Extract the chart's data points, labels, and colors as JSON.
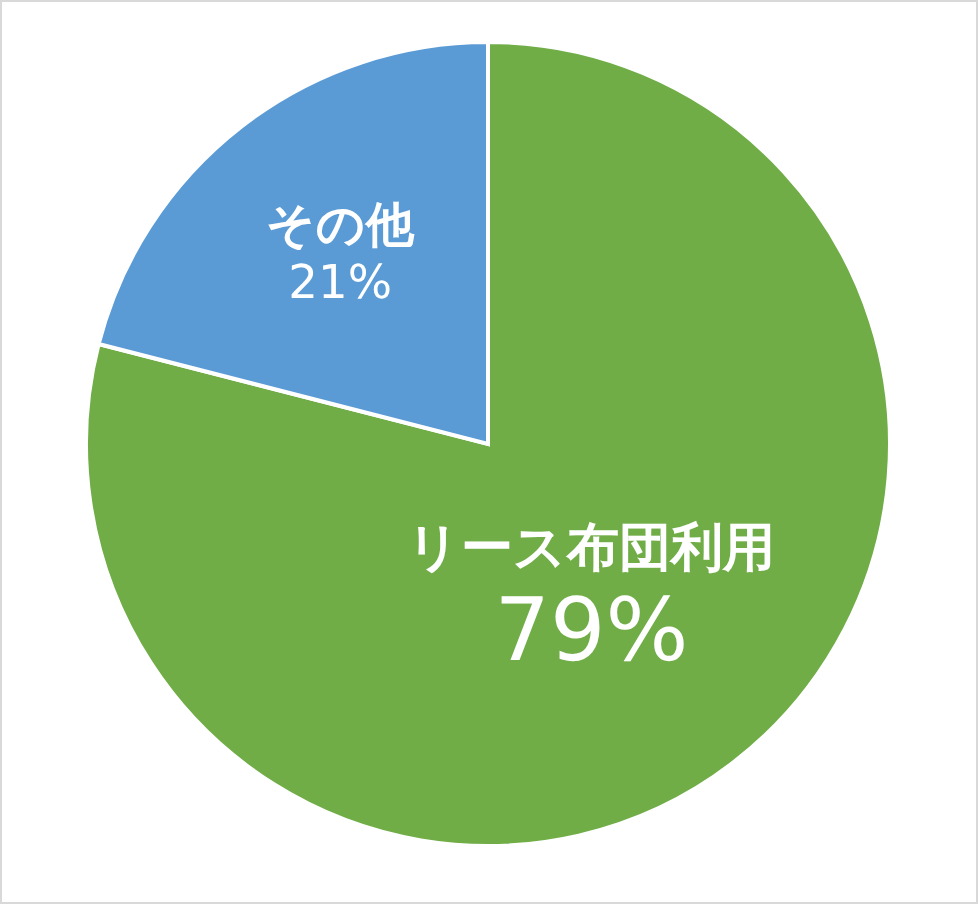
{
  "chart_data": {
    "type": "pie",
    "categories": [
      "リース布団利用",
      "その他"
    ],
    "values": [
      79,
      21
    ],
    "colors": [
      "#70ad47",
      "#5b9bd5"
    ],
    "value_labels": [
      "79%",
      "21%"
    ]
  }
}
